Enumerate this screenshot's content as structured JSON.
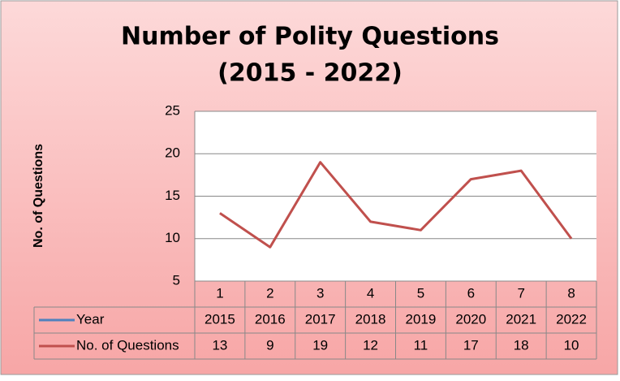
{
  "chart_data": {
    "type": "line",
    "title": "Number of Polity Questions",
    "subtitle": "(2015 - 2022)",
    "y_label": "No. of Questions",
    "categories": [
      "1",
      "2",
      "3",
      "4",
      "5",
      "6",
      "7",
      "8"
    ],
    "series": [
      {
        "name": "Year",
        "color": "#4f81bd",
        "values": [
          2015,
          2016,
          2017,
          2018,
          2019,
          2020,
          2021,
          2022
        ]
      },
      {
        "name": "No. of Questions",
        "color": "#c0504d",
        "values": [
          13,
          9,
          19,
          12,
          11,
          17,
          18,
          10
        ]
      }
    ],
    "ylim": [
      5,
      25
    ],
    "yticks": [
      5,
      10,
      15,
      20,
      25
    ],
    "grid": true
  }
}
